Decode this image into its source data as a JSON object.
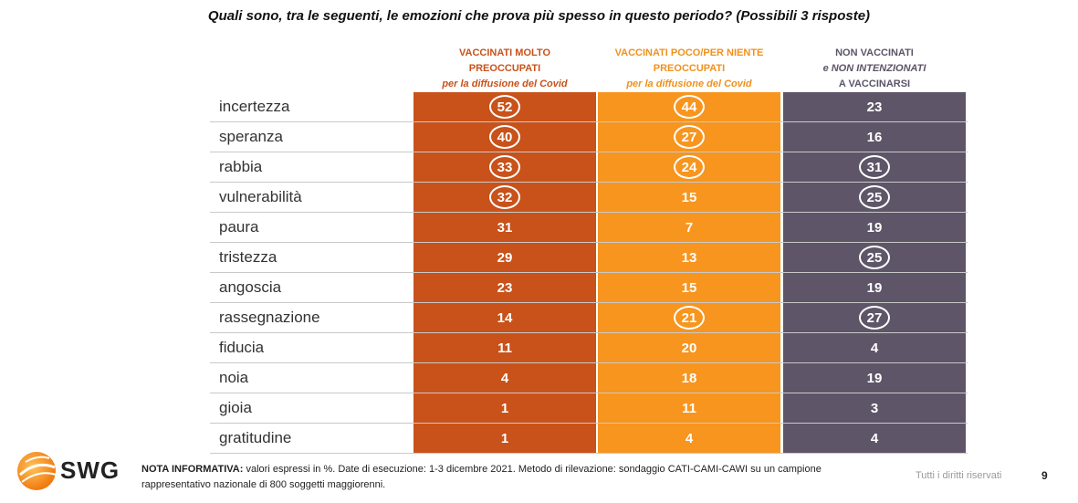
{
  "title": "Quali sono, tra le seguenti, le emozioni che prova più spesso in questo periodo? (Possibili 3 risposte)",
  "columns": [
    {
      "line1": "VACCINATI MOLTO",
      "line2": "PREOCCUPATI",
      "line3": "per la diffusione del Covid",
      "color": "#c8521a"
    },
    {
      "line1": "VACCINATI POCO/PER NIENTE",
      "line2": "PREOCCUPATI",
      "line3": "per la diffusione del Covid",
      "color": "#f7951f"
    },
    {
      "line1": "NON VACCINATI",
      "line2": "e NON INTENZIONATI",
      "line3": "A VACCINARSI",
      "color": "#5e5568"
    }
  ],
  "chart_data": {
    "type": "table",
    "title": "Quali sono, tra le seguenti, le emozioni che prova più spesso in questo periodo? (Possibili 3 risposte)",
    "categories": [
      "incertezza",
      "speranza",
      "rabbia",
      "vulnerabilità",
      "paura",
      "tristezza",
      "angoscia",
      "rassegnazione",
      "fiducia",
      "noia",
      "gioia",
      "gratitudine"
    ],
    "series": [
      {
        "name": "VACCINATI MOLTO PREOCCUPATI per la diffusione del Covid",
        "values": [
          52,
          40,
          33,
          32,
          31,
          29,
          23,
          14,
          11,
          4,
          1,
          1
        ],
        "highlighted": [
          true,
          true,
          true,
          true,
          false,
          false,
          false,
          false,
          false,
          false,
          false,
          false
        ]
      },
      {
        "name": "VACCINATI POCO/PER NIENTE PREOCCUPATI per la diffusione del Covid",
        "values": [
          44,
          27,
          24,
          15,
          7,
          13,
          15,
          21,
          20,
          18,
          11,
          4
        ],
        "highlighted": [
          true,
          true,
          true,
          false,
          false,
          false,
          false,
          true,
          false,
          false,
          false,
          false
        ]
      },
      {
        "name": "NON VACCINATI e NON INTENZIONATI A VACCINARSI",
        "values": [
          23,
          16,
          31,
          25,
          19,
          25,
          19,
          27,
          4,
          19,
          3,
          4
        ],
        "highlighted": [
          false,
          false,
          true,
          true,
          false,
          true,
          false,
          true,
          false,
          false,
          false,
          false
        ]
      }
    ]
  },
  "footer": {
    "logo_text": "SWG",
    "note_label": "NOTA INFORMATIVA:",
    "note_text": " valori espressi in %. Date di esecuzione: 1-3 dicembre 2021. Metodo di rilevazione: sondaggio CATI-CAMI-CAWI su un campione rappresentativo nazionale di 800 soggetti maggiorenni.",
    "rights": "Tutti i diritti riservati",
    "page_number": "9"
  }
}
